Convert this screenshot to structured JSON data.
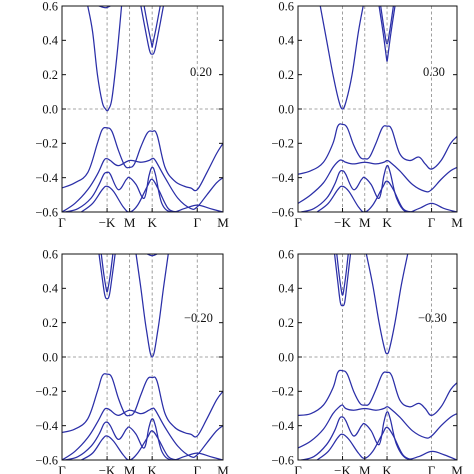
{
  "chart_data": [
    {
      "type": "line",
      "annotation": "0.20",
      "ylim": [
        -0.6,
        0.6
      ],
      "yticks": [
        "0.6",
        "0.4",
        "0.2",
        "0.0",
        "−0.2",
        "−0.4",
        "−0.6"
      ],
      "ytick_values": [
        0.6,
        0.4,
        0.2,
        0.0,
        -0.2,
        -0.4,
        -0.6
      ],
      "xticks": [
        "Γ",
        "−K",
        "M",
        "K",
        "Γ",
        "M"
      ],
      "xtick_positions": [
        0,
        1.4,
        2.1,
        2.8,
        4.2,
        5.0
      ],
      "fermi_level": 0.0,
      "band_color": "#2b2fa8",
      "series": [
        {
          "x": [
            0.8,
            0.95,
            1.1,
            1.25,
            1.35,
            1.4,
            1.45,
            1.55,
            1.7,
            1.85
          ],
          "values": [
            0.6,
            0.45,
            0.2,
            0.04,
            0.0,
            -0.01,
            0.0,
            0.06,
            0.3,
            0.6
          ]
        },
        {
          "x": [
            2.45,
            2.6,
            2.72,
            2.8,
            2.88,
            3.0,
            3.15
          ],
          "values": [
            0.6,
            0.45,
            0.34,
            0.32,
            0.34,
            0.45,
            0.6
          ]
        },
        {
          "x": [
            2.55,
            2.68,
            2.78,
            2.8,
            2.82,
            2.92,
            3.05
          ],
          "values": [
            0.6,
            0.47,
            0.38,
            0.36,
            0.38,
            0.47,
            0.6
          ]
        },
        {
          "x": [
            1.15,
            1.35,
            1.5
          ],
          "values": [
            0.6,
            0.59,
            0.6
          ]
        },
        {
          "x": [
            0,
            0.4,
            0.8,
            1.1,
            1.25,
            1.4,
            1.55,
            1.75,
            1.95,
            2.1,
            2.25,
            2.45,
            2.65,
            2.8,
            2.95,
            3.2,
            3.5,
            3.8,
            4.0,
            4.2,
            4.5,
            4.8,
            5.0
          ],
          "values": [
            -0.46,
            -0.43,
            -0.37,
            -0.2,
            -0.12,
            -0.11,
            -0.13,
            -0.24,
            -0.33,
            -0.34,
            -0.32,
            -0.22,
            -0.14,
            -0.13,
            -0.15,
            -0.34,
            -0.42,
            -0.45,
            -0.46,
            -0.47,
            -0.37,
            -0.26,
            -0.2
          ]
        },
        {
          "x": [
            0,
            0.4,
            0.8,
            1.1,
            1.3,
            1.4,
            1.5,
            1.75,
            2.1,
            2.45,
            2.7,
            2.8,
            2.9,
            3.2,
            3.6,
            4.0,
            4.2,
            4.5,
            4.8,
            5.0
          ],
          "values": [
            -0.6,
            -0.55,
            -0.47,
            -0.38,
            -0.3,
            -0.29,
            -0.3,
            -0.33,
            -0.3,
            -0.31,
            -0.3,
            -0.29,
            -0.3,
            -0.4,
            -0.52,
            -0.58,
            -0.57,
            -0.5,
            -0.43,
            -0.4
          ]
        },
        {
          "x": [
            0.1,
            0.5,
            0.9,
            1.15,
            1.3,
            1.4,
            1.5,
            1.75,
            2.0,
            2.1,
            2.3,
            2.55,
            2.7,
            2.8,
            2.9,
            3.1,
            3.4,
            3.8,
            4.2,
            4.6,
            5.0
          ],
          "values": [
            -0.6,
            -0.58,
            -0.52,
            -0.44,
            -0.38,
            -0.37,
            -0.38,
            -0.47,
            -0.41,
            -0.4,
            -0.44,
            -0.52,
            -0.39,
            -0.34,
            -0.38,
            -0.55,
            -0.6,
            -0.58,
            -0.56,
            -0.58,
            -0.6
          ]
        },
        {
          "x": [
            0.6,
            0.95,
            1.25,
            1.4,
            1.6,
            1.9,
            2.1,
            2.35,
            2.65,
            2.8,
            3.0,
            3.3,
            3.6
          ],
          "values": [
            -0.6,
            -0.55,
            -0.47,
            -0.45,
            -0.48,
            -0.57,
            -0.6,
            -0.56,
            -0.45,
            -0.41,
            -0.47,
            -0.58,
            -0.6
          ]
        }
      ]
    },
    {
      "type": "line",
      "annotation": "0.30",
      "ylim": [
        -0.6,
        0.6
      ],
      "yticks": [
        "0.6",
        "0.4",
        "0.2",
        "0.0",
        "−0.2",
        "−0.4",
        "−0.6"
      ],
      "ytick_values": [
        0.6,
        0.4,
        0.2,
        0.0,
        -0.2,
        -0.4,
        -0.6
      ],
      "xticks": [
        "Γ",
        "−K",
        "M",
        "K",
        "Γ",
        "M"
      ],
      "xtick_positions": [
        0,
        1.4,
        2.1,
        2.8,
        4.2,
        5.0
      ],
      "fermi_level": 0.0,
      "band_color": "#2b2fa8",
      "series": [
        {
          "x": [
            0.7,
            0.9,
            1.1,
            1.28,
            1.4,
            1.52,
            1.7,
            1.9,
            2.05
          ],
          "values": [
            0.6,
            0.4,
            0.2,
            0.05,
            0.0,
            0.05,
            0.2,
            0.45,
            0.6
          ]
        },
        {
          "x": [
            2.55,
            2.68,
            2.78,
            2.8,
            2.82,
            2.92,
            3.05
          ],
          "values": [
            0.6,
            0.44,
            0.3,
            0.28,
            0.3,
            0.44,
            0.6
          ]
        },
        {
          "x": [
            2.6,
            2.72,
            2.8,
            2.88,
            3.0
          ],
          "values": [
            0.6,
            0.45,
            0.38,
            0.45,
            0.6
          ]
        },
        {
          "x": [
            0,
            0.4,
            0.8,
            1.1,
            1.25,
            1.4,
            1.55,
            1.75,
            1.95,
            2.1,
            2.25,
            2.45,
            2.65,
            2.8,
            2.95,
            3.2,
            3.5,
            3.8,
            4.0,
            4.2,
            4.5,
            4.8,
            5.0
          ],
          "values": [
            -0.38,
            -0.36,
            -0.31,
            -0.2,
            -0.1,
            -0.09,
            -0.11,
            -0.21,
            -0.28,
            -0.29,
            -0.28,
            -0.2,
            -0.11,
            -0.1,
            -0.12,
            -0.26,
            -0.3,
            -0.28,
            -0.32,
            -0.35,
            -0.3,
            -0.2,
            -0.16
          ]
        },
        {
          "x": [
            0,
            0.4,
            0.8,
            1.1,
            1.3,
            1.4,
            1.5,
            1.75,
            2.1,
            2.45,
            2.7,
            2.8,
            2.9,
            3.2,
            3.6,
            4.0,
            4.2,
            4.5,
            4.8,
            5.0
          ],
          "values": [
            -0.55,
            -0.5,
            -0.43,
            -0.34,
            -0.3,
            -0.3,
            -0.31,
            -0.32,
            -0.31,
            -0.32,
            -0.31,
            -0.3,
            -0.31,
            -0.36,
            -0.44,
            -0.48,
            -0.47,
            -0.41,
            -0.36,
            -0.34
          ]
        },
        {
          "x": [
            0.1,
            0.5,
            0.9,
            1.15,
            1.3,
            1.4,
            1.5,
            1.75,
            2.0,
            2.1,
            2.3,
            2.55,
            2.7,
            2.8,
            2.9,
            3.1,
            3.4,
            3.8,
            4.2,
            4.6,
            5.0
          ],
          "values": [
            -0.6,
            -0.58,
            -0.52,
            -0.44,
            -0.37,
            -0.36,
            -0.38,
            -0.47,
            -0.41,
            -0.4,
            -0.44,
            -0.52,
            -0.39,
            -0.33,
            -0.37,
            -0.52,
            -0.6,
            -0.58,
            -0.55,
            -0.58,
            -0.6
          ]
        },
        {
          "x": [
            0.6,
            0.95,
            1.25,
            1.4,
            1.6,
            1.9,
            2.1,
            2.35,
            2.65,
            2.8,
            3.0,
            3.3,
            3.6
          ],
          "values": [
            -0.6,
            -0.55,
            -0.47,
            -0.45,
            -0.48,
            -0.57,
            -0.6,
            -0.56,
            -0.46,
            -0.42,
            -0.47,
            -0.58,
            -0.6
          ]
        }
      ]
    },
    {
      "type": "line",
      "annotation": "−0.20",
      "ylim": [
        -0.6,
        0.6
      ],
      "yticks": [
        "0.6",
        "0.4",
        "0.2",
        "0.0",
        "−0.2",
        "−0.4",
        "−0.6"
      ],
      "ytick_values": [
        0.6,
        0.4,
        0.2,
        0.0,
        -0.2,
        -0.4,
        -0.6
      ],
      "xticks": [
        "Γ",
        "−K",
        "M",
        "K",
        "Γ",
        "M"
      ],
      "xtick_positions": [
        0,
        1.4,
        2.1,
        2.8,
        4.2,
        5.0
      ],
      "fermi_level": 0.0,
      "band_color": "#2b2fa8",
      "series": [
        {
          "x": [
            1.15,
            1.25,
            1.33,
            1.4,
            1.47,
            1.55,
            1.65
          ],
          "values": [
            0.6,
            0.46,
            0.36,
            0.34,
            0.36,
            0.46,
            0.6
          ]
        },
        {
          "x": [
            1.22,
            1.3,
            1.37,
            1.4,
            1.43,
            1.5,
            1.58
          ],
          "values": [
            0.6,
            0.48,
            0.4,
            0.38,
            0.4,
            0.48,
            0.6
          ]
        },
        {
          "x": [
            2.3,
            2.45,
            2.62,
            2.8,
            2.98,
            3.15,
            3.3
          ],
          "values": [
            0.6,
            0.4,
            0.16,
            0.0,
            0.16,
            0.4,
            0.6
          ]
        },
        {
          "x": [
            2.65,
            2.8,
            2.95
          ],
          "values": [
            0.6,
            0.59,
            0.6
          ]
        },
        {
          "x": [
            0,
            0.4,
            0.8,
            1.1,
            1.25,
            1.4,
            1.55,
            1.75,
            1.95,
            2.1,
            2.25,
            2.45,
            2.65,
            2.8,
            2.95,
            3.2,
            3.5,
            3.8,
            4.0,
            4.2,
            4.5,
            4.8,
            5.0
          ],
          "values": [
            -0.44,
            -0.42,
            -0.36,
            -0.2,
            -0.11,
            -0.1,
            -0.12,
            -0.24,
            -0.33,
            -0.34,
            -0.32,
            -0.22,
            -0.13,
            -0.12,
            -0.14,
            -0.33,
            -0.41,
            -0.44,
            -0.45,
            -0.46,
            -0.36,
            -0.25,
            -0.2
          ]
        },
        {
          "x": [
            0,
            0.4,
            0.8,
            1.1,
            1.3,
            1.4,
            1.5,
            1.75,
            2.1,
            2.45,
            2.7,
            2.8,
            2.9,
            3.2,
            3.6,
            4.0,
            4.2,
            4.5,
            4.8,
            5.0
          ],
          "values": [
            -0.6,
            -0.55,
            -0.47,
            -0.38,
            -0.31,
            -0.3,
            -0.31,
            -0.34,
            -0.31,
            -0.33,
            -0.31,
            -0.3,
            -0.31,
            -0.41,
            -0.52,
            -0.58,
            -0.57,
            -0.5,
            -0.43,
            -0.4
          ]
        },
        {
          "x": [
            0.1,
            0.5,
            0.9,
            1.15,
            1.3,
            1.4,
            1.5,
            1.75,
            2.0,
            2.1,
            2.3,
            2.55,
            2.7,
            2.8,
            2.9,
            3.1,
            3.4,
            3.8,
            4.2,
            4.6,
            5.0
          ],
          "values": [
            -0.6,
            -0.58,
            -0.52,
            -0.45,
            -0.39,
            -0.38,
            -0.4,
            -0.48,
            -0.42,
            -0.41,
            -0.45,
            -0.53,
            -0.41,
            -0.36,
            -0.4,
            -0.55,
            -0.6,
            -0.58,
            -0.56,
            -0.58,
            -0.6
          ]
        },
        {
          "x": [
            0.6,
            0.95,
            1.25,
            1.4,
            1.6,
            1.9,
            2.1,
            2.35,
            2.65,
            2.8,
            3.0,
            3.3,
            3.6
          ],
          "values": [
            -0.6,
            -0.56,
            -0.48,
            -0.46,
            -0.49,
            -0.57,
            -0.6,
            -0.56,
            -0.47,
            -0.43,
            -0.48,
            -0.58,
            -0.6
          ]
        }
      ]
    },
    {
      "type": "line",
      "annotation": "−0.30",
      "ylim": [
        -0.6,
        0.6
      ],
      "yticks": [
        "0.6",
        "0.4",
        "0.2",
        "0.0",
        "−0.2",
        "−0.4",
        "−0.6"
      ],
      "ytick_values": [
        0.6,
        0.4,
        0.2,
        0.0,
        -0.2,
        -0.4,
        -0.6
      ],
      "xticks": [
        "Γ",
        "−K",
        "M",
        "K",
        "Γ",
        "M"
      ],
      "xtick_positions": [
        0,
        1.4,
        2.1,
        2.8,
        4.2,
        5.0
      ],
      "fermi_level": 0.0,
      "band_color": "#2b2fa8",
      "series": [
        {
          "x": [
            1.15,
            1.25,
            1.33,
            1.4,
            1.47,
            1.55,
            1.65
          ],
          "values": [
            0.6,
            0.44,
            0.32,
            0.3,
            0.32,
            0.44,
            0.6
          ]
        },
        {
          "x": [
            1.22,
            1.3,
            1.37,
            1.4,
            1.43,
            1.5,
            1.58
          ],
          "values": [
            0.6,
            0.47,
            0.38,
            0.36,
            0.38,
            0.47,
            0.6
          ]
        },
        {
          "x": [
            2.15,
            2.35,
            2.55,
            2.72,
            2.8,
            2.88,
            3.05,
            3.25,
            3.45
          ],
          "values": [
            0.6,
            0.42,
            0.2,
            0.05,
            0.02,
            0.05,
            0.2,
            0.42,
            0.6
          ]
        },
        {
          "x": [
            0,
            0.4,
            0.8,
            1.1,
            1.25,
            1.4,
            1.55,
            1.75,
            1.95,
            2.1,
            2.25,
            2.45,
            2.65,
            2.8,
            2.95,
            3.2,
            3.5,
            3.8,
            4.0,
            4.2,
            4.5,
            4.8,
            5.0
          ],
          "values": [
            -0.34,
            -0.33,
            -0.28,
            -0.18,
            -0.09,
            -0.08,
            -0.1,
            -0.2,
            -0.27,
            -0.28,
            -0.27,
            -0.19,
            -0.1,
            -0.09,
            -0.11,
            -0.25,
            -0.29,
            -0.27,
            -0.3,
            -0.34,
            -0.29,
            -0.19,
            -0.15
          ]
        },
        {
          "x": [
            0,
            0.4,
            0.8,
            1.1,
            1.3,
            1.4,
            1.5,
            1.75,
            2.1,
            2.45,
            2.7,
            2.8,
            2.9,
            3.2,
            3.6,
            4.0,
            4.2,
            4.5,
            4.8,
            5.0
          ],
          "values": [
            -0.53,
            -0.49,
            -0.42,
            -0.33,
            -0.29,
            -0.28,
            -0.3,
            -0.31,
            -0.3,
            -0.31,
            -0.3,
            -0.29,
            -0.3,
            -0.35,
            -0.43,
            -0.47,
            -0.46,
            -0.4,
            -0.35,
            -0.33
          ]
        },
        {
          "x": [
            0.1,
            0.5,
            0.9,
            1.15,
            1.3,
            1.4,
            1.5,
            1.75,
            2.0,
            2.1,
            2.3,
            2.55,
            2.7,
            2.8,
            2.9,
            3.1,
            3.4,
            3.8,
            4.2,
            4.6,
            5.0
          ],
          "values": [
            -0.6,
            -0.58,
            -0.51,
            -0.43,
            -0.36,
            -0.35,
            -0.37,
            -0.46,
            -0.4,
            -0.39,
            -0.43,
            -0.51,
            -0.38,
            -0.32,
            -0.36,
            -0.51,
            -0.59,
            -0.58,
            -0.55,
            -0.57,
            -0.6
          ]
        },
        {
          "x": [
            0.6,
            0.95,
            1.25,
            1.4,
            1.6,
            1.9,
            2.1,
            2.35,
            2.65,
            2.8,
            3.0,
            3.3,
            3.6
          ],
          "values": [
            -0.6,
            -0.55,
            -0.47,
            -0.45,
            -0.48,
            -0.56,
            -0.59,
            -0.55,
            -0.45,
            -0.41,
            -0.46,
            -0.57,
            -0.6
          ]
        }
      ]
    }
  ]
}
